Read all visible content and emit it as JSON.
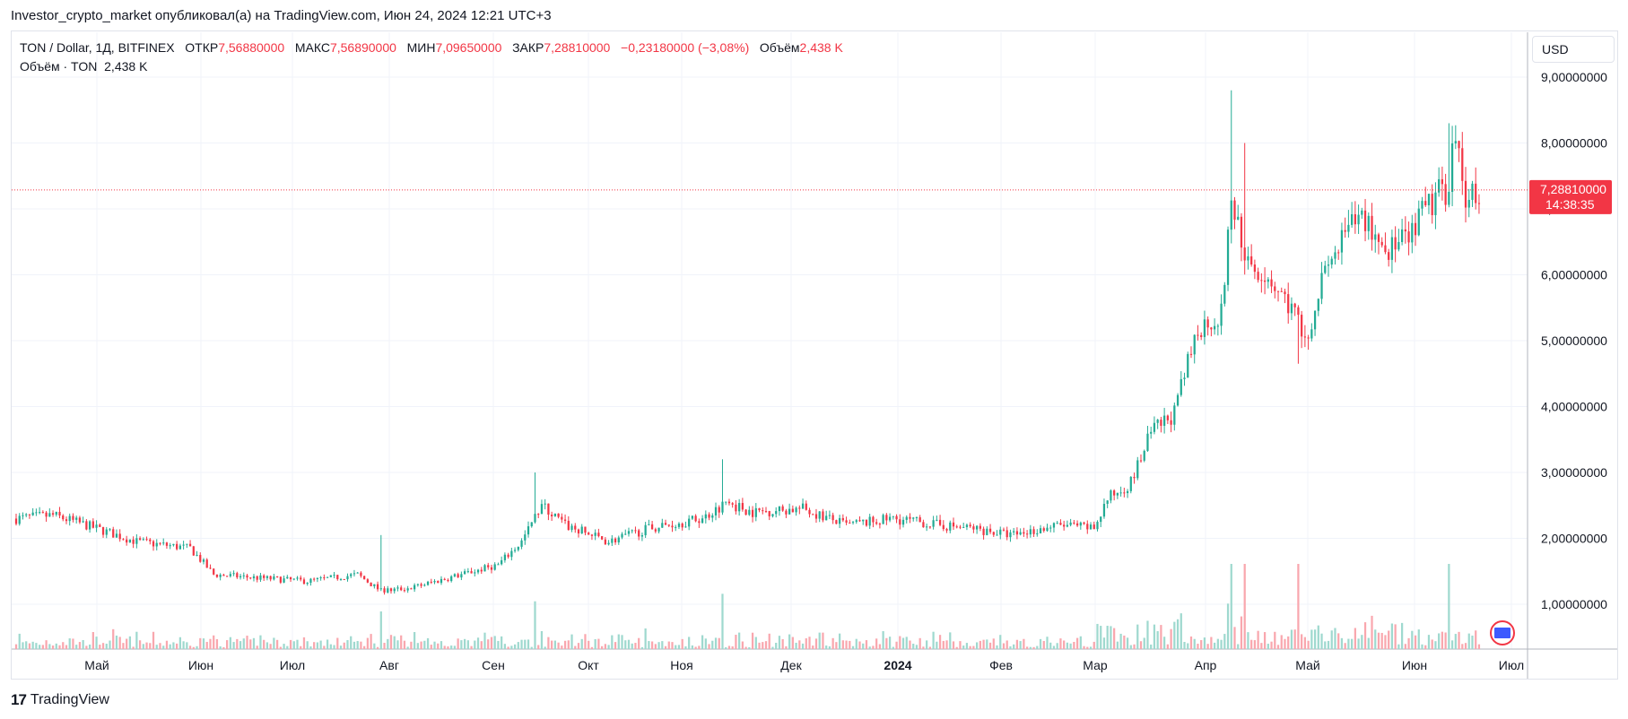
{
  "header": {
    "published_line": "Investor_crypto_market опубликовал(а) на TradingView.com, Июн 24, 2024 12:21 UTC+3"
  },
  "legend": {
    "symbol": "TON / Dollar, 1Д, BITFINEX",
    "open_label": "ОТКР",
    "open_value": "7,56880000",
    "high_label": "МАКС",
    "high_value": "7,56890000",
    "low_label": "МИН",
    "low_value": "7,09650000",
    "close_label": "ЗАКР",
    "close_value": "7,28810000",
    "change": "−0,23180000 (−3,08%)",
    "volume_label": "Объём",
    "volume_value": "2,438 K",
    "volume_line_label": "Объём · TON",
    "volume_line_value": "2,438 K"
  },
  "currency": "USD",
  "price_badge": {
    "price": "7,28810000",
    "countdown": "14:38:35"
  },
  "footer": {
    "brand": "TradingView"
  },
  "colors": {
    "up": "#22ab94",
    "down": "#f23645",
    "up_volume": "#9fd9cf",
    "down_volume": "#f9a7ae",
    "grid": "#f0f3fa"
  },
  "chart_data": {
    "type": "candlestick",
    "title": "TON / Dollar, 1Д, BITFINEX",
    "ylim": [
      0,
      9.5
    ],
    "y_ticks": [
      "1,00000000",
      "2,00000000",
      "3,00000000",
      "4,00000000",
      "5,00000000",
      "6,00000000",
      "7,00000000",
      "8,00000000",
      "9,00000000"
    ],
    "y_tick_values": [
      1,
      2,
      3,
      4,
      5,
      6,
      7,
      8,
      9
    ],
    "x_labels": [
      "Май",
      "Июн",
      "Июл",
      "Авг",
      "Сен",
      "Окт",
      "Ноя",
      "Дек",
      "2024",
      "Фев",
      "Мар",
      "Апр",
      "Май",
      "Июн",
      "Июл"
    ],
    "x_label_bold": [
      false,
      false,
      false,
      false,
      false,
      false,
      false,
      false,
      true,
      false,
      false,
      false,
      false,
      false,
      false
    ],
    "x_range_months": [
      "2023-04-14",
      "2024-07-05"
    ],
    "last_price": 7.2881,
    "price_path": [
      {
        "date": "2023-04-14",
        "close": 2.3
      },
      {
        "date": "2023-04-25",
        "close": 2.35
      },
      {
        "date": "2023-05-05",
        "close": 2.2
      },
      {
        "date": "2023-05-20",
        "close": 1.95
      },
      {
        "date": "2023-06-05",
        "close": 1.85
      },
      {
        "date": "2023-06-12",
        "close": 1.45
      },
      {
        "date": "2023-06-25",
        "close": 1.4
      },
      {
        "date": "2023-07-10",
        "close": 1.35
      },
      {
        "date": "2023-07-25",
        "close": 1.45
      },
      {
        "date": "2023-08-01",
        "close": 1.2
      },
      {
        "date": "2023-08-10",
        "close": 1.25
      },
      {
        "date": "2023-08-25",
        "close": 1.45
      },
      {
        "date": "2023-09-05",
        "close": 1.6
      },
      {
        "date": "2023-09-12",
        "close": 1.95
      },
      {
        "date": "2023-09-18",
        "close": 2.5
      },
      {
        "date": "2023-09-25",
        "close": 2.2
      },
      {
        "date": "2023-10-08",
        "close": 1.95
      },
      {
        "date": "2023-10-20",
        "close": 2.15
      },
      {
        "date": "2023-11-05",
        "close": 2.3
      },
      {
        "date": "2023-11-12",
        "close": 2.55
      },
      {
        "date": "2023-11-20",
        "close": 2.4
      },
      {
        "date": "2023-12-05",
        "close": 2.45
      },
      {
        "date": "2023-12-18",
        "close": 2.2
      },
      {
        "date": "2024-01-01",
        "close": 2.3
      },
      {
        "date": "2024-01-15",
        "close": 2.2
      },
      {
        "date": "2024-01-25",
        "close": 2.15
      },
      {
        "date": "2024-02-05",
        "close": 2.05
      },
      {
        "date": "2024-02-20",
        "close": 2.2
      },
      {
        "date": "2024-03-01",
        "close": 2.15
      },
      {
        "date": "2024-03-05",
        "close": 2.6
      },
      {
        "date": "2024-03-12",
        "close": 2.85
      },
      {
        "date": "2024-03-18",
        "close": 3.6
      },
      {
        "date": "2024-03-25",
        "close": 3.9
      },
      {
        "date": "2024-04-01",
        "close": 5.2
      },
      {
        "date": "2024-04-08",
        "close": 5.4
      },
      {
        "date": "2024-04-11",
        "close": 7.1
      },
      {
        "date": "2024-04-16",
        "close": 6.2
      },
      {
        "date": "2024-04-22",
        "close": 6.0
      },
      {
        "date": "2024-04-30",
        "close": 5.4
      },
      {
        "date": "2024-05-03",
        "close": 5.0
      },
      {
        "date": "2024-05-08",
        "close": 5.9
      },
      {
        "date": "2024-05-15",
        "close": 6.6
      },
      {
        "date": "2024-05-20",
        "close": 6.9
      },
      {
        "date": "2024-05-27",
        "close": 6.4
      },
      {
        "date": "2024-06-03",
        "close": 6.5
      },
      {
        "date": "2024-06-08",
        "close": 7.0
      },
      {
        "date": "2024-06-14",
        "close": 7.3
      },
      {
        "date": "2024-06-17",
        "close": 7.95
      },
      {
        "date": "2024-06-20",
        "close": 7.2
      },
      {
        "date": "2024-06-24",
        "close": 7.29
      }
    ],
    "spikes": [
      {
        "date": "2023-08-01",
        "high": 2.05
      },
      {
        "date": "2023-09-16",
        "high": 3.0
      },
      {
        "date": "2023-11-11",
        "high": 3.2
      },
      {
        "date": "2024-04-11",
        "high": 8.8
      },
      {
        "date": "2024-04-15",
        "high": 8.0
      },
      {
        "date": "2024-05-01",
        "low": 4.65
      },
      {
        "date": "2024-06-15",
        "high": 8.3
      }
    ]
  }
}
